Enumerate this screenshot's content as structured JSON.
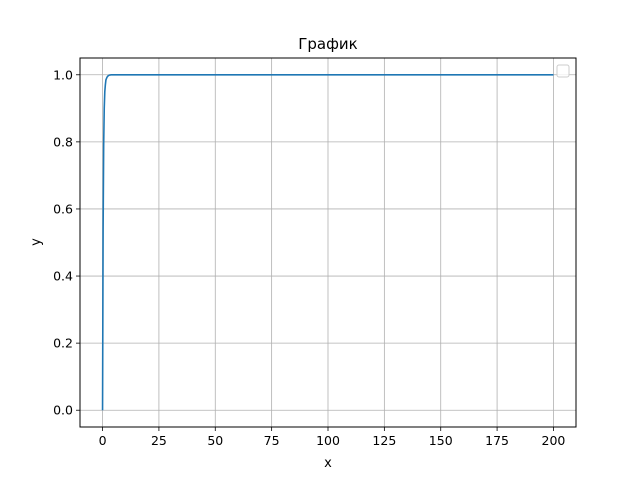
{
  "chart_data": {
    "type": "line",
    "title": "График",
    "xlabel": "x",
    "ylabel": "y",
    "xlim": [
      -10,
      210
    ],
    "ylim": [
      -0.05,
      1.05
    ],
    "xticks": [
      0,
      25,
      50,
      75,
      100,
      125,
      150,
      175,
      200
    ],
    "yticks": [
      0.0,
      0.2,
      0.4,
      0.6,
      0.8,
      1.0
    ],
    "xtick_labels": [
      "0",
      "25",
      "50",
      "75",
      "100",
      "125",
      "150",
      "175",
      "200"
    ],
    "ytick_labels": [
      "0.0",
      "0.2",
      "0.4",
      "0.6",
      "0.8",
      "1.0"
    ],
    "grid": true,
    "legend": "top-right",
    "line_color": "#1f77b4",
    "grid_color": "#b0b0b0",
    "series": [
      {
        "x": [
          0,
          0.25,
          0.5,
          0.75,
          1,
          1.25,
          1.5,
          2,
          2.5,
          3,
          3.5,
          4,
          5,
          6,
          8,
          10,
          15,
          20,
          30,
          50,
          75,
          100,
          125,
          150,
          175,
          200
        ],
        "y": [
          0,
          0.54,
          0.79,
          0.9,
          0.95,
          0.97,
          0.985,
          0.993,
          0.997,
          0.999,
          0.9995,
          1,
          1,
          1,
          1,
          1,
          1,
          1,
          1,
          1,
          1,
          1,
          1,
          1,
          1,
          1
        ]
      }
    ]
  }
}
